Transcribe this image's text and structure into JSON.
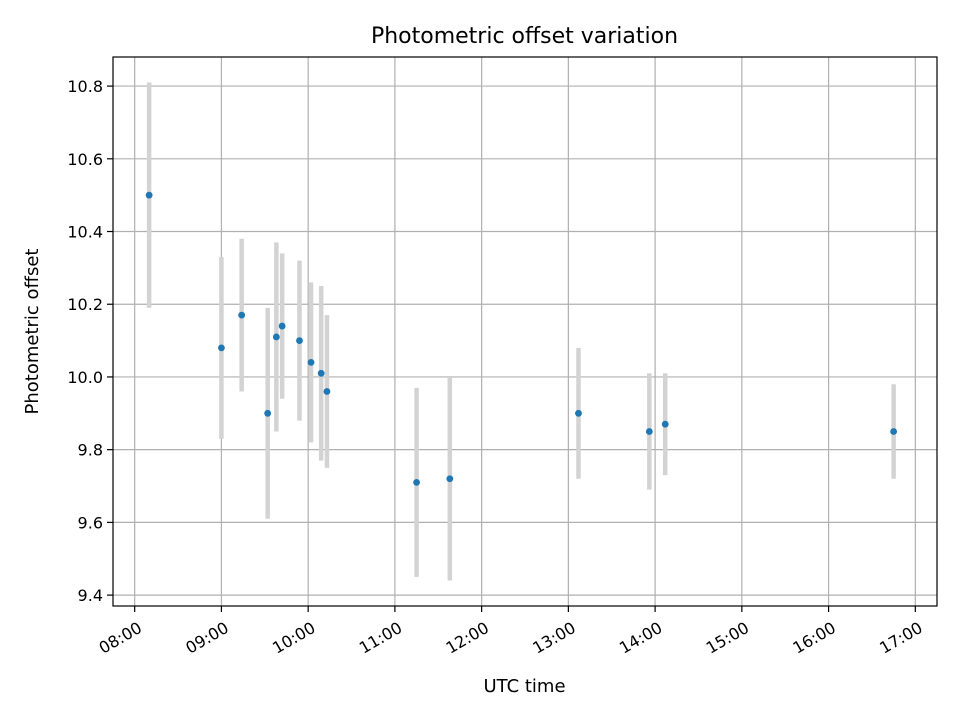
{
  "chart_data": {
    "type": "scatter",
    "title": "Photometric offset variation",
    "xlabel": "UTC time",
    "ylabel": "Photometric offset",
    "xlim": [
      "07:45",
      "17:15"
    ],
    "ylim": [
      9.37,
      10.88
    ],
    "x_ticks": [
      "08:00",
      "09:00",
      "10:00",
      "11:00",
      "12:00",
      "13:00",
      "14:00",
      "15:00",
      "16:00",
      "17:00"
    ],
    "y_ticks": [
      "9.4",
      "9.6",
      "9.8",
      "10.0",
      "10.2",
      "10.4",
      "10.6",
      "10.8"
    ],
    "grid": true,
    "colors": {
      "point": "#1f77b4",
      "errorbar": "#d3d3d3"
    },
    "points": [
      {
        "x": "08:10",
        "y": 10.5,
        "err": 0.31
      },
      {
        "x": "09:00",
        "y": 10.08,
        "err": 0.25
      },
      {
        "x": "09:14",
        "y": 10.17,
        "err": 0.21
      },
      {
        "x": "09:32",
        "y": 9.9,
        "err": 0.29
      },
      {
        "x": "09:38",
        "y": 10.11,
        "err": 0.26
      },
      {
        "x": "09:42",
        "y": 10.14,
        "err": 0.2
      },
      {
        "x": "09:54",
        "y": 10.1,
        "err": 0.22
      },
      {
        "x": "10:02",
        "y": 10.04,
        "err": 0.22
      },
      {
        "x": "10:09",
        "y": 10.01,
        "err": 0.24
      },
      {
        "x": "10:13",
        "y": 9.96,
        "err": 0.21
      },
      {
        "x": "11:15",
        "y": 9.71,
        "err": 0.26
      },
      {
        "x": "11:38",
        "y": 9.72,
        "err": 0.28
      },
      {
        "x": "13:07",
        "y": 9.9,
        "err": 0.18
      },
      {
        "x": "13:56",
        "y": 9.85,
        "err": 0.16
      },
      {
        "x": "14:07",
        "y": 9.87,
        "err": 0.14
      },
      {
        "x": "16:45",
        "y": 9.85,
        "err": 0.13
      }
    ]
  }
}
